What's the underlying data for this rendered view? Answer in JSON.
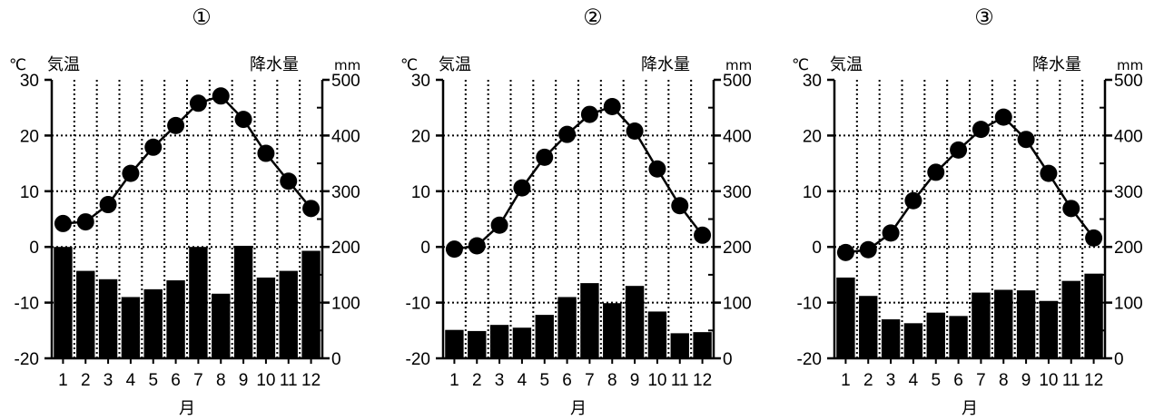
{
  "chart_data": [
    {
      "type": "bar+line",
      "title": "①",
      "left_axis_unit": "℃",
      "left_axis_label": "気温",
      "right_axis_label": "降水量",
      "right_axis_unit": "mm",
      "xlabel": "月",
      "categories": [
        "1",
        "2",
        "3",
        "4",
        "5",
        "6",
        "7",
        "8",
        "9",
        "10",
        "11",
        "12"
      ],
      "left_ticks": [
        "30",
        "20",
        "10",
        "0",
        "-10",
        "-20"
      ],
      "right_ticks": [
        "500",
        "400",
        "300",
        "200",
        "100",
        "0"
      ],
      "temperature_ylim": [
        -20,
        30
      ],
      "precipitation_ylim": [
        0,
        500
      ],
      "grid": true,
      "temperature": [
        4.2,
        4.5,
        7.6,
        13.2,
        17.9,
        21.8,
        25.8,
        27.1,
        22.9,
        16.8,
        11.8,
        6.9
      ],
      "precipitation": [
        200,
        157,
        142,
        110,
        124,
        140,
        200,
        116,
        202,
        145,
        157,
        193
      ]
    },
    {
      "type": "bar+line",
      "title": "②",
      "left_axis_unit": "℃",
      "left_axis_label": "気温",
      "right_axis_label": "降水量",
      "right_axis_unit": "mm",
      "xlabel": "月",
      "categories": [
        "1",
        "2",
        "3",
        "4",
        "5",
        "6",
        "7",
        "8",
        "9",
        "10",
        "11",
        "12"
      ],
      "left_ticks": [
        "30",
        "20",
        "10",
        "0",
        "-10",
        "-20"
      ],
      "right_ticks": [
        "500",
        "400",
        "300",
        "200",
        "100",
        "0"
      ],
      "temperature_ylim": [
        -20,
        30
      ],
      "precipitation_ylim": [
        0,
        500
      ],
      "grid": true,
      "temperature": [
        -0.4,
        0.2,
        3.9,
        10.6,
        16.1,
        20.2,
        23.8,
        25.2,
        20.8,
        14.0,
        7.4,
        2.1
      ],
      "precipitation": [
        51,
        49,
        60,
        55,
        78,
        110,
        135,
        99,
        130,
        84,
        45,
        47
      ]
    },
    {
      "type": "bar+line",
      "title": "③",
      "left_axis_unit": "℃",
      "left_axis_label": "気温",
      "right_axis_label": "降水量",
      "right_axis_unit": "mm",
      "xlabel": "月",
      "categories": [
        "1",
        "2",
        "3",
        "4",
        "5",
        "6",
        "7",
        "8",
        "9",
        "10",
        "11",
        "12"
      ],
      "left_ticks": [
        "30",
        "20",
        "10",
        "0",
        "-10",
        "-20"
      ],
      "right_ticks": [
        "500",
        "400",
        "300",
        "200",
        "100",
        "0"
      ],
      "temperature_ylim": [
        -20,
        30
      ],
      "precipitation_ylim": [
        0,
        500
      ],
      "grid": true,
      "temperature": [
        -1.0,
        -0.5,
        2.5,
        8.3,
        13.4,
        17.4,
        21.1,
        23.3,
        19.3,
        13.2,
        6.9,
        1.6
      ],
      "precipitation": [
        145,
        112,
        70,
        63,
        82,
        76,
        118,
        123,
        122,
        103,
        139,
        152
      ]
    }
  ]
}
